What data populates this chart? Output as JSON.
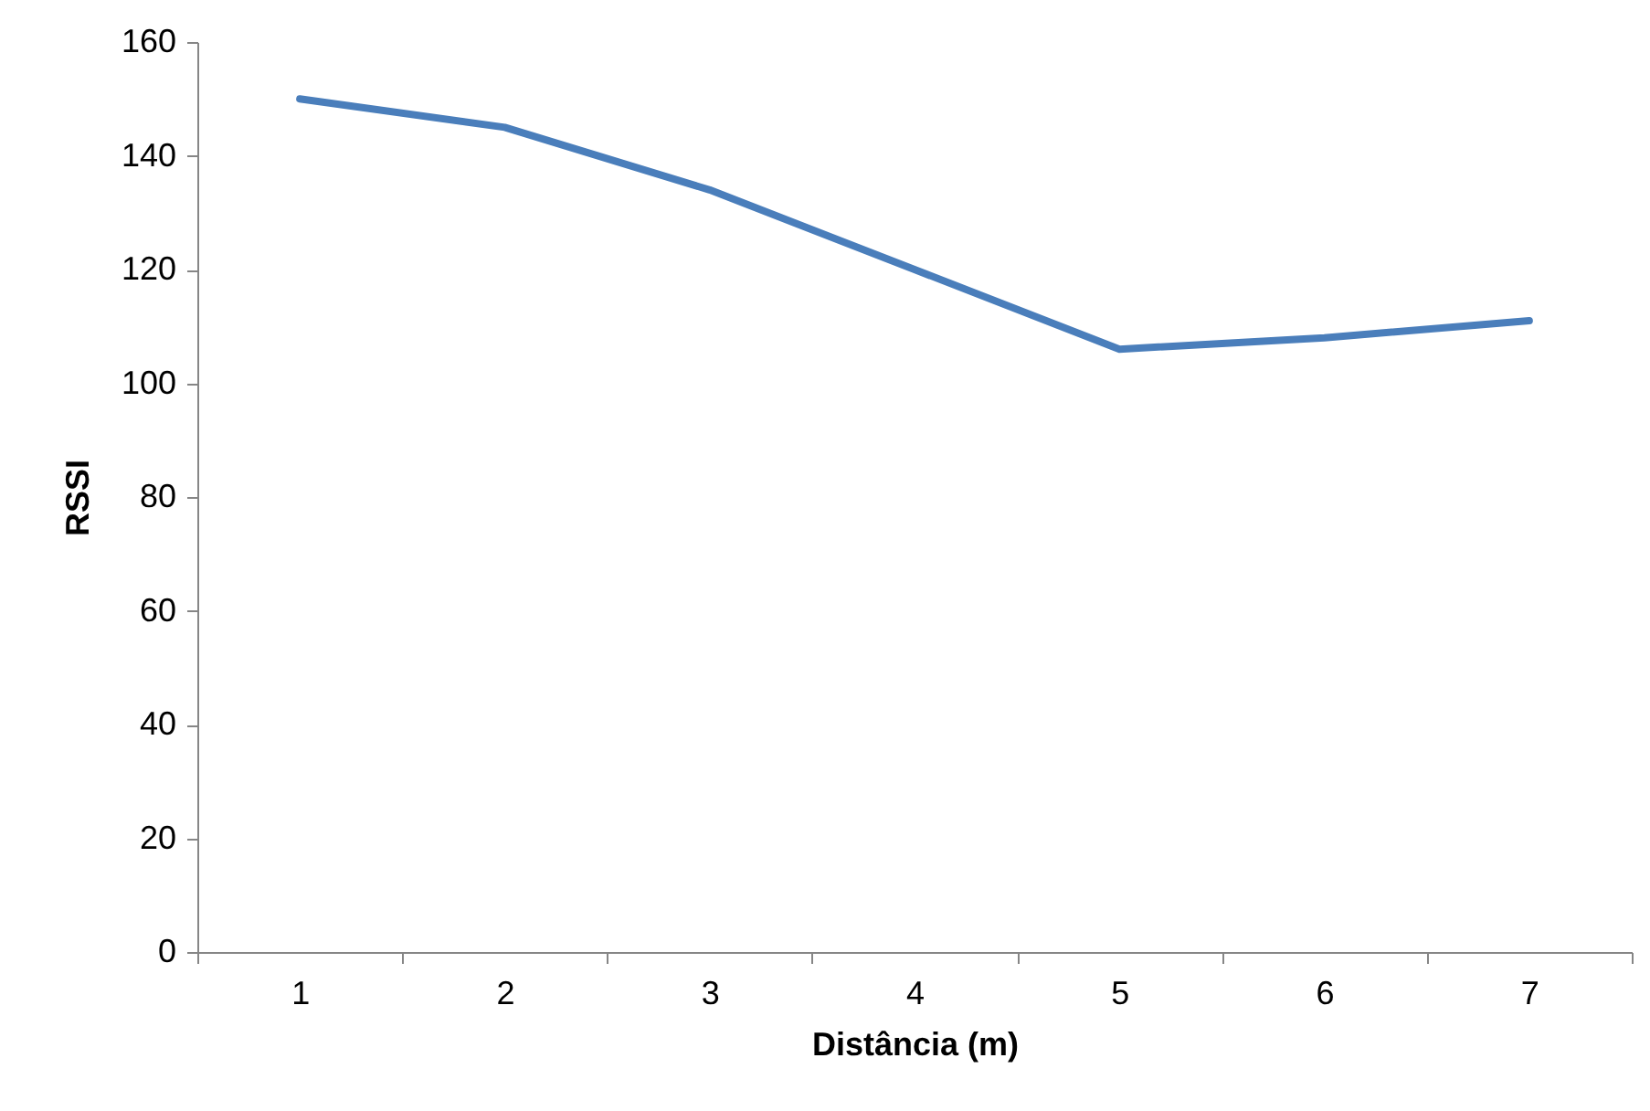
{
  "chart_data": {
    "type": "line",
    "xlabel": "Distância (m)",
    "ylabel": "RSSI",
    "categories": [
      "1",
      "2",
      "3",
      "4",
      "5",
      "6",
      "7"
    ],
    "series": [
      {
        "color": "#4a7ebb",
        "values": [
          150,
          145,
          134,
          120,
          106,
          108,
          111
        ]
      }
    ],
    "ylim": [
      0,
      160
    ],
    "yticks": [
      0,
      20,
      40,
      60,
      80,
      100,
      120,
      140,
      160
    ],
    "grid": false,
    "legend": false,
    "marker": "none",
    "line_style": "solid"
  }
}
